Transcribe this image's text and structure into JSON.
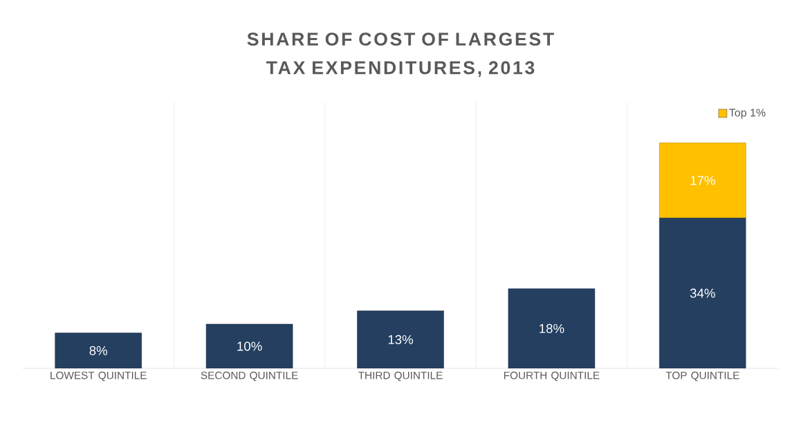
{
  "chart_data": {
    "type": "bar",
    "title": "SHARE OF COST OF LARGEST TAX EXPENDITURES, 2013",
    "categories": [
      "LOWEST QUINTILE",
      "SECOND QUINTILE",
      "THIRD QUINTILE",
      "FOURTH QUINTILE",
      "TOP QUINTILE"
    ],
    "stacked": true,
    "grid": "x",
    "legend": "top right",
    "series": [
      {
        "color": "#243f60",
        "values": [
          8,
          10,
          13,
          18,
          34
        ],
        "value_labels": [
          "8%",
          "10%",
          "13%",
          "18%",
          "34%"
        ]
      },
      {
        "name": "Top 1%",
        "color": "#ffc000",
        "values": [
          null,
          null,
          null,
          null,
          17
        ],
        "value_labels": [
          null,
          null,
          null,
          null,
          "17%"
        ]
      }
    ]
  }
}
